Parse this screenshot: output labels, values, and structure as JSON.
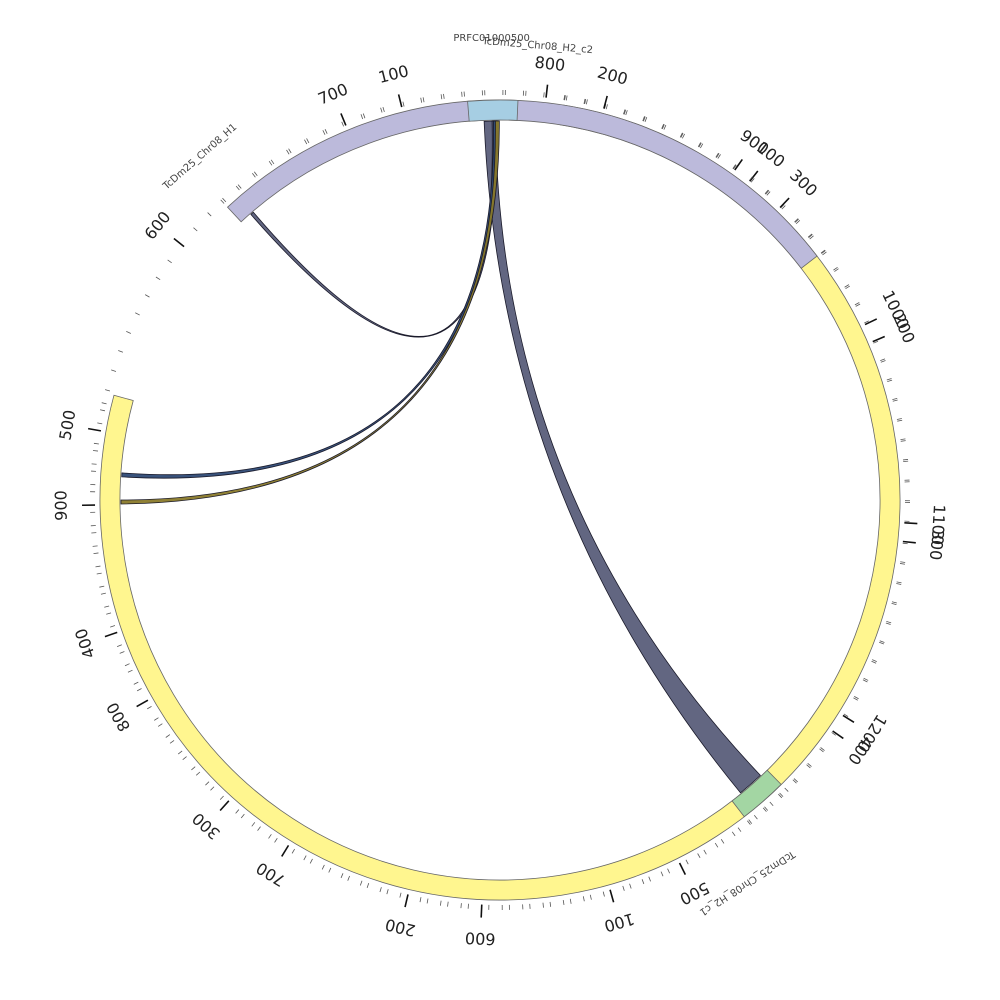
{
  "diagram": {
    "type": "circos",
    "unit_degrees_per_kb": 0.289,
    "segments": [
      {
        "id": "yellow",
        "name": "TcDm25_Chr08_H2_c1",
        "length_kb": 955,
        "start_deg": 9.18,
        "color": "#fff68f",
        "ticks": [
          "100",
          "200",
          "300",
          "400",
          "500",
          "600",
          "700",
          "800",
          "900"
        ]
      },
      {
        "id": "green",
        "name": "TcDm25_Chr08_H1",
        "length_kb": 1270,
        "start_deg": 135.33,
        "color": "#a3d6a3",
        "ticks": [
          "100",
          "200",
          "300",
          "400",
          "500",
          "600",
          "700",
          "800",
          "900",
          "1000",
          "1100",
          "1200"
        ]
      },
      {
        "id": "purple",
        "name": "TcDm25_Chr08_H2_c2",
        "length_kb": 330,
        "start_deg": 317.06,
        "color": "#bcbadb",
        "ticks": [
          "100",
          "200",
          "300"
        ]
      },
      {
        "id": "blue",
        "name": "PRFC01000500",
        "length_kb": 25,
        "start_deg": 355.35,
        "color": "#a6cee3",
        "ticks": []
      }
    ],
    "links": [
      {
        "from_deg": 357.6,
        "to_deg": 359.3,
        "from2_deg": 136.6,
        "to2_deg": 140.6,
        "color": "#5a5e7a"
      },
      {
        "from_deg": 358.8,
        "to_deg": 359.5,
        "from2_deg": 318.9,
        "to2_deg": 319.4,
        "color": "#5a5e7a"
      },
      {
        "from_deg": 359.0,
        "to_deg": 359.7,
        "from2_deg": 273.5,
        "to2_deg": 274.1,
        "color": "#2e4a75"
      },
      {
        "from_deg": 359.3,
        "to_deg": 359.9,
        "from2_deg": 269.4,
        "to2_deg": 270.0,
        "color": "#8a7a2a"
      }
    ]
  }
}
